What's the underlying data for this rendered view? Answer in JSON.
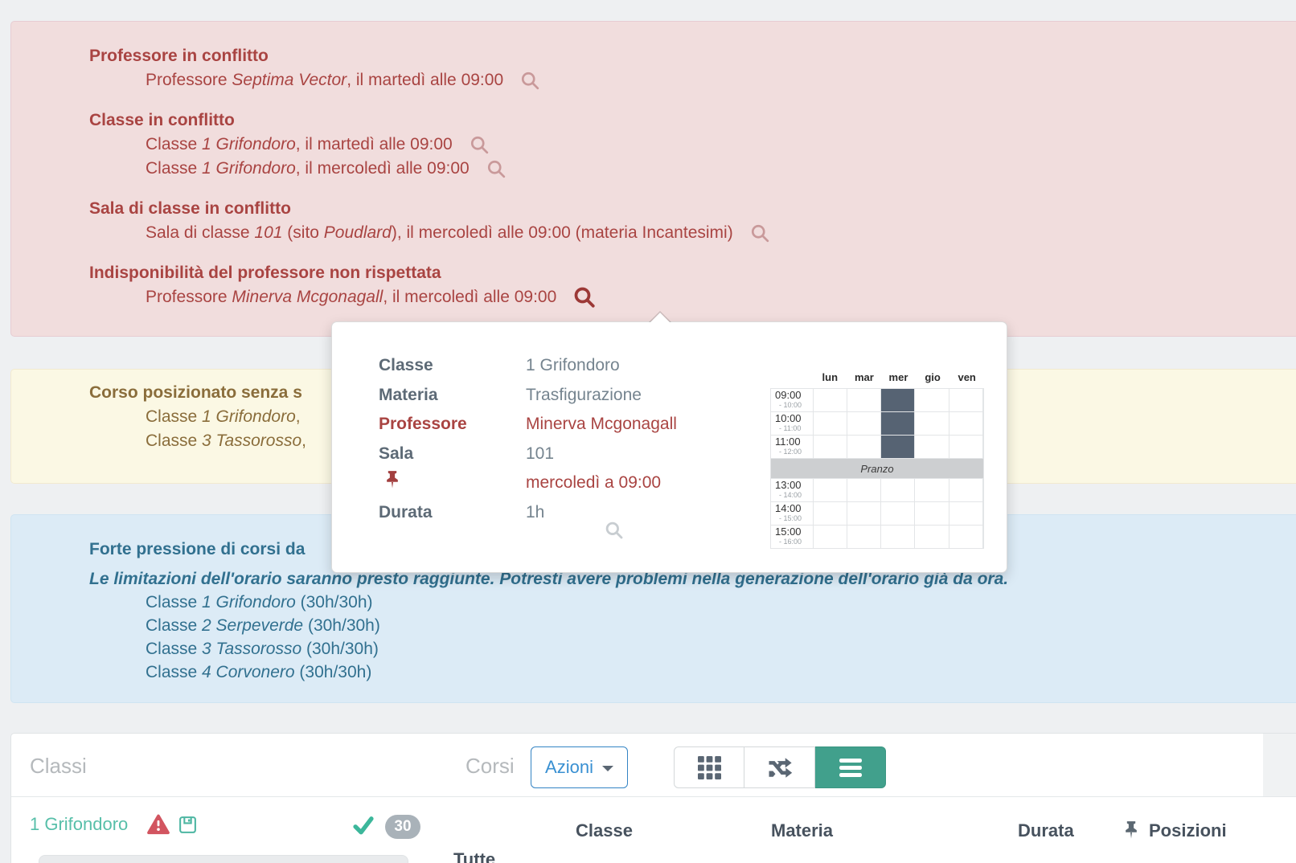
{
  "colors": {
    "accent_red": "#a94442",
    "accent_yellow": "#8a6d3b",
    "accent_blue_text": "#31708f",
    "accent_teal": "#41a08c",
    "link_blue": "#3990d2",
    "danger_bg": "#f1dddd",
    "warning_bg": "#fbf8e4",
    "info_bg": "#dcebf6",
    "filled_cell": "#566373"
  },
  "alerts": [
    {
      "kind": "danger",
      "groups": [
        {
          "title": "Professore in conflitto",
          "items": [
            {
              "segs": [
                [
                  "Professore "
                ],
                [
                  "Septima Vector",
                  1
                ],
                [
                  ", il martedì alle 09:00"
                ]
              ],
              "icon": "magnifier"
            }
          ]
        },
        {
          "title": "Classe in conflitto",
          "items": [
            {
              "segs": [
                [
                  "Classe "
                ],
                [
                  "1 Grifondoro",
                  1
                ],
                [
                  ", il martedì alle 09:00"
                ]
              ],
              "icon": "magnifier"
            },
            {
              "segs": [
                [
                  "Classe "
                ],
                [
                  "1 Grifondoro",
                  1
                ],
                [
                  ", il mercoledì alle 09:00"
                ]
              ],
              "icon": "magnifier"
            }
          ]
        },
        {
          "title": "Sala di classe in conflitto",
          "items": [
            {
              "segs": [
                [
                  "Sala di classe "
                ],
                [
                  "101",
                  1
                ],
                [
                  " (sito "
                ],
                [
                  "Poudlard",
                  1
                ],
                [
                  "), il mercoledì alle 09:00 (materia Incantesimi)"
                ]
              ],
              "icon": "magnifier"
            }
          ]
        },
        {
          "title": "Indisponibilità del professore non rispettata",
          "items": [
            {
              "segs": [
                [
                  "Professore "
                ],
                [
                  "Minerva Mcgonagall",
                  1
                ],
                [
                  ", il mercoledì alle 09:00"
                ]
              ],
              "icon": "magnifier-active"
            }
          ]
        }
      ]
    },
    {
      "kind": "warning",
      "groups": [
        {
          "title": "Corso posizionato senza s",
          "items": [
            {
              "segs": [
                [
                  "Classe "
                ],
                [
                  "1 Grifondoro",
                  1
                ],
                [
                  ","
                ]
              ]
            },
            {
              "segs": [
                [
                  "Classe "
                ],
                [
                  "3 Tassorosso",
                  1
                ],
                [
                  ","
                ]
              ]
            }
          ]
        }
      ]
    },
    {
      "kind": "info",
      "groups": [
        {
          "title": "Forte pressione di corsi da",
          "note": "Le limitazioni dell'orario saranno presto raggiunte. Potresti avere problemi nella generazione dell'orario già da ora.",
          "items": [
            {
              "segs": [
                [
                  "Classe "
                ],
                [
                  "1 Grifondoro",
                  1
                ],
                [
                  " (30h/30h)"
                ]
              ]
            },
            {
              "segs": [
                [
                  "Classe "
                ],
                [
                  "2 Serpeverde",
                  1
                ],
                [
                  " (30h/30h)"
                ]
              ]
            },
            {
              "segs": [
                [
                  "Classe "
                ],
                [
                  "3 Tassorosso",
                  1
                ],
                [
                  " (30h/30h)"
                ]
              ]
            },
            {
              "segs": [
                [
                  "Classe "
                ],
                [
                  "4 Corvonero",
                  1
                ],
                [
                  " (30h/30h)"
                ]
              ]
            }
          ]
        }
      ]
    }
  ],
  "popover": {
    "fields": [
      {
        "label": "Classe",
        "value": "1 Grifondoro"
      },
      {
        "label": "Materia",
        "value": "Trasfigurazione"
      },
      {
        "label": "Professore",
        "value": "Minerva Mcgonagall",
        "accent": true
      },
      {
        "label": "Sala",
        "value": "101"
      },
      {
        "icon": "pin-icon",
        "value": "mercoledì a 09:00",
        "accent": true
      },
      {
        "label": "Durata",
        "value": "1h"
      }
    ],
    "timetable": {
      "days": [
        "lun",
        "mar",
        "mer",
        "gio",
        "ven"
      ],
      "rows": [
        {
          "time": "09:00",
          "sub": "- 10:00",
          "filled": [
            "mer"
          ]
        },
        {
          "time": "10:00",
          "sub": "- 11:00",
          "filled": [
            "mer"
          ]
        },
        {
          "time": "11:00",
          "sub": "- 12:00",
          "filled": [
            "mer"
          ]
        },
        {
          "lunch": "Pranzo"
        },
        {
          "time": "13:00",
          "sub": "- 14:00",
          "filled": []
        },
        {
          "time": "14:00",
          "sub": "- 15:00",
          "filled": []
        },
        {
          "time": "15:00",
          "sub": "- 16:00",
          "filled": []
        }
      ]
    }
  },
  "toolbar": {
    "left_title": "Classi",
    "right_title": "Corsi",
    "actions_label": "Azioni",
    "views": [
      {
        "icon": "grid-icon",
        "active": false
      },
      {
        "icon": "shuffle-icon",
        "active": false
      },
      {
        "icon": "list-icon",
        "active": true
      }
    ]
  },
  "classes_list": [
    {
      "name": "1 Grifondoro",
      "warning": true,
      "saved": true,
      "checked": true,
      "badge": "30"
    }
  ],
  "courses_table": {
    "headers": [
      "Classe",
      "Materia",
      "Durata",
      "Posizioni"
    ],
    "positions_header_icon": "pin-icon",
    "filter_all": "Tutte"
  }
}
